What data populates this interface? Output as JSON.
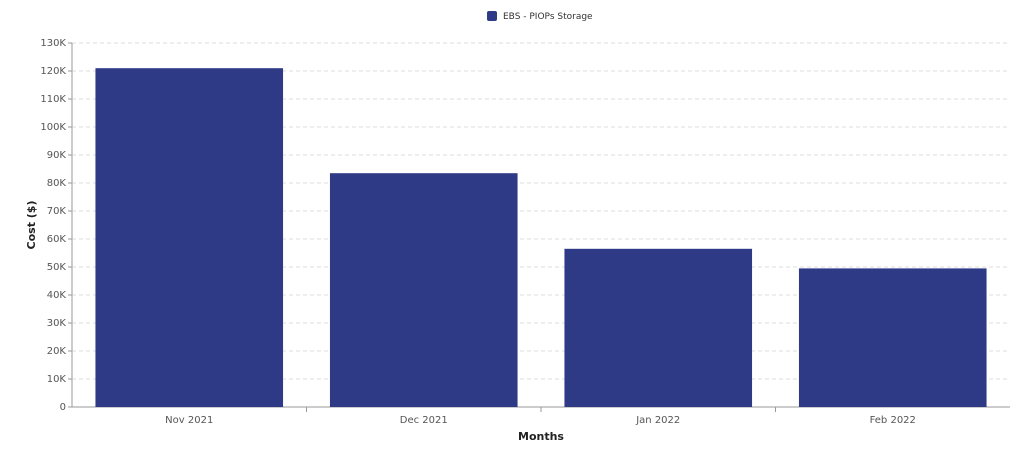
{
  "chart_data": {
    "type": "bar",
    "x_label": "Months",
    "y_label": "Cost ($)",
    "categories": [
      "Nov 2021",
      "Dec 2021",
      "Jan 2022",
      "Feb 2022"
    ],
    "series": [
      {
        "name": "EBS - PIOPs Storage",
        "color": "#2f3a87",
        "values": [
          121000,
          83500,
          56500,
          49500
        ]
      }
    ],
    "ylim": [
      0,
      130000
    ],
    "yticks": [
      0,
      {
        "value": 10000,
        "label": "10K"
      },
      {
        "value": 20000,
        "label": "20K"
      },
      {
        "value": 30000,
        "label": "30K"
      },
      {
        "value": 40000,
        "label": "40K"
      },
      {
        "value": 50000,
        "label": "50K"
      },
      {
        "value": 60000,
        "label": "60K"
      },
      {
        "value": 70000,
        "label": "70K"
      },
      {
        "value": 80000,
        "label": "80K"
      },
      {
        "value": 90000,
        "label": "90K"
      },
      {
        "value": 100000,
        "label": "100K"
      },
      {
        "value": 110000,
        "label": "110K"
      },
      {
        "value": 120000,
        "label": "120K"
      },
      {
        "value": 130000,
        "label": "130K"
      }
    ],
    "grid": true,
    "legend": "top"
  }
}
